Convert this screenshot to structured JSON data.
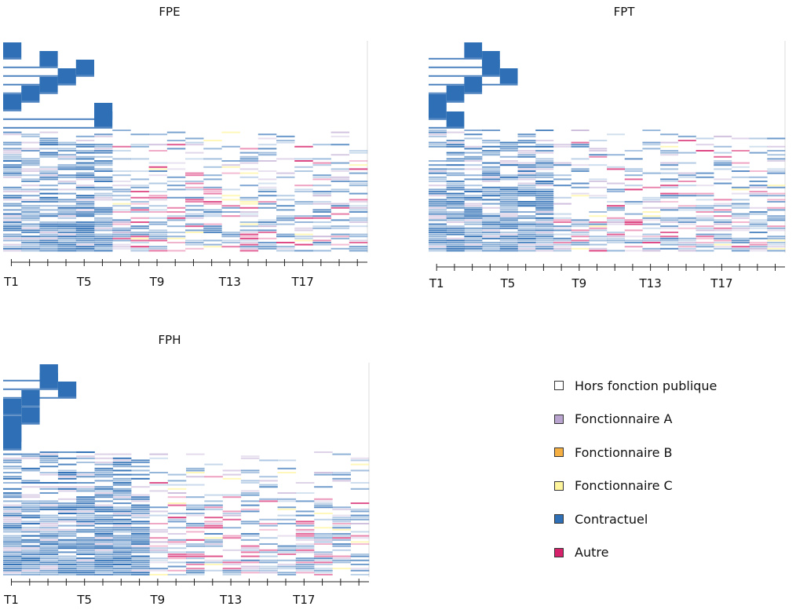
{
  "chart_data": {
    "type": "heatmap",
    "x_ticks_labeled": [
      "T1",
      "T5",
      "T9",
      "T13",
      "T17"
    ],
    "periods": 20,
    "categories": [
      {
        "name": "Hors fonction publique",
        "color": "#ffffff"
      },
      {
        "name": "Fonctionnaire A",
        "color": "#b9a3cf"
      },
      {
        "name": "Fonctionnaire B",
        "color": "#f5b041"
      },
      {
        "name": "Fonctionnaire C",
        "color": "#fff59d"
      },
      {
        "name": "Contractuel",
        "color": "#2f6fb5"
      },
      {
        "name": "Autre",
        "color": "#d6226b"
      }
    ],
    "panels": [
      {
        "title": "FPE",
        "entry_period": [
          1,
          3,
          5,
          4,
          3,
          2,
          1,
          6,
          6
        ],
        "blue_fade_start": 6,
        "pink_intensity": 0.55
      },
      {
        "title": "FPT",
        "entry_period": [
          3,
          4,
          4,
          5,
          3,
          2,
          1,
          1,
          2
        ],
        "blue_fade_start": 7,
        "pink_intensity": 0.45
      },
      {
        "title": "FPH",
        "entry_period": [
          3,
          3,
          4,
          2,
          1,
          2,
          1,
          1,
          1
        ],
        "blue_fade_start": 8,
        "pink_intensity": 0.5
      }
    ]
  }
}
